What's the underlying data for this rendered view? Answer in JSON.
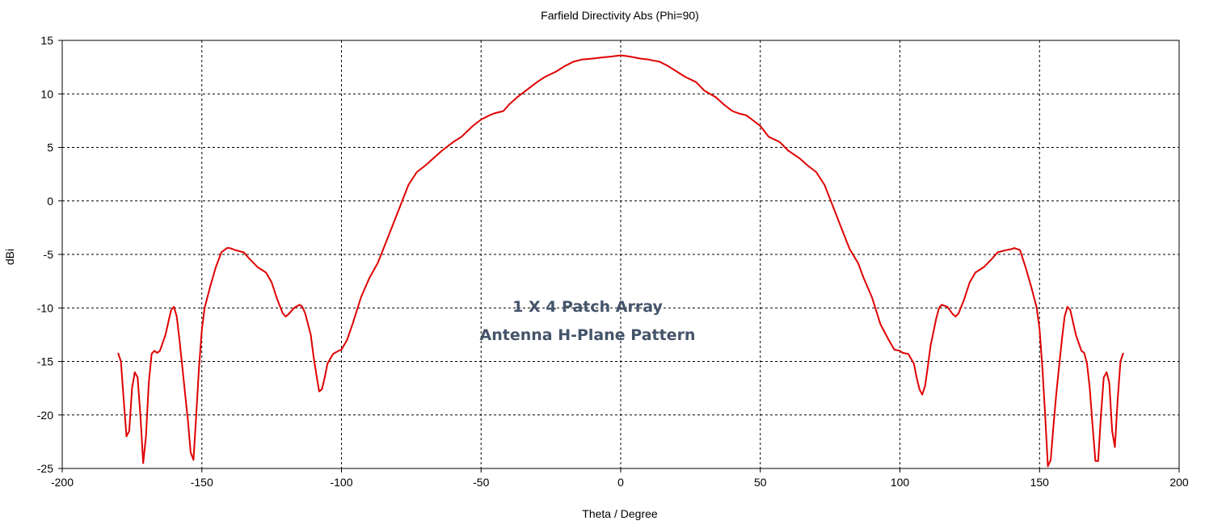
{
  "chart_data": {
    "type": "line",
    "title": "Farfield Directivity Abs (Phi=90)",
    "xlabel": "Theta / Degree",
    "ylabel": "dBi",
    "xlim": [
      -200,
      200
    ],
    "ylim": [
      -25,
      15
    ],
    "xticks": [
      -200,
      -150,
      -100,
      -50,
      0,
      50,
      100,
      150,
      200
    ],
    "yticks": [
      -25,
      -20,
      -15,
      -10,
      -5,
      0,
      5,
      10,
      15
    ],
    "grid": true,
    "annotations": [
      "1 X 4 Patch Array",
      "Antenna H-Plane Pattern"
    ],
    "series": [
      {
        "color": "#e00000",
        "x": [
          -180,
          -179,
          -178,
          -177,
          -176,
          -175,
          -174,
          -173,
          -172,
          -171,
          -170,
          -169,
          -168,
          -167,
          -166,
          -165,
          -163,
          -161,
          -160,
          -159,
          -158,
          -157,
          -156,
          -155,
          -154,
          -153,
          -152,
          -151,
          -150,
          -149,
          -147,
          -145,
          -143,
          -141,
          -140,
          -138,
          -135,
          -133,
          -130,
          -127,
          -125,
          -123,
          -121,
          -120,
          -119,
          -117,
          -115,
          -114,
          -113,
          -111,
          -110,
          -109,
          -108,
          -107,
          -106,
          -105,
          -103,
          -101,
          -100,
          -98,
          -96,
          -93,
          -90,
          -87,
          -85,
          -82,
          -79,
          -76,
          -73,
          -70,
          -67,
          -64,
          -60,
          -57,
          -53,
          -50,
          -47,
          -45,
          -42,
          -40,
          -37,
          -34,
          -30,
          -27,
          -23,
          -20,
          -17,
          -14,
          -10,
          -7,
          -3,
          0,
          3,
          7,
          10,
          14,
          17,
          20,
          23,
          27,
          30,
          34,
          37,
          40,
          42,
          45,
          47,
          50,
          53,
          57,
          60,
          64,
          67,
          70,
          73,
          76,
          79,
          82,
          85,
          87,
          90,
          93,
          96,
          98,
          100,
          101,
          103,
          105,
          106,
          107,
          108,
          109,
          110,
          111,
          113,
          114,
          115,
          117,
          119,
          120,
          121,
          123,
          125,
          127,
          130,
          133,
          135,
          138,
          140,
          141,
          143,
          145,
          147,
          149,
          150,
          151,
          152,
          153,
          154,
          155,
          156,
          157,
          158,
          159,
          160,
          161,
          163,
          165,
          166,
          167,
          168,
          169,
          170,
          171,
          172,
          173,
          174,
          175,
          176,
          177,
          178,
          179,
          180
        ],
        "values": [
          -14.2,
          -15.0,
          -18.5,
          -22.0,
          -21.5,
          -17.5,
          -16.0,
          -16.5,
          -20.0,
          -24.5,
          -22.0,
          -17.0,
          -14.3,
          -14.0,
          -14.2,
          -14.0,
          -12.5,
          -10.2,
          -9.9,
          -10.8,
          -13.0,
          -15.5,
          -18.0,
          -20.5,
          -23.5,
          -24.2,
          -20.0,
          -15.5,
          -12.0,
          -10.0,
          -8.0,
          -6.2,
          -4.8,
          -4.4,
          -4.4,
          -4.6,
          -4.8,
          -5.4,
          -6.2,
          -6.7,
          -7.6,
          -9.2,
          -10.5,
          -10.8,
          -10.6,
          -10.0,
          -9.7,
          -9.9,
          -10.5,
          -12.5,
          -14.5,
          -16.2,
          -17.8,
          -17.6,
          -16.5,
          -15.2,
          -14.3,
          -14.0,
          -13.9,
          -13.0,
          -11.5,
          -9.0,
          -7.2,
          -5.8,
          -4.5,
          -2.5,
          -0.5,
          1.5,
          2.7,
          3.3,
          4.0,
          4.7,
          5.5,
          6.0,
          7.0,
          7.6,
          8.0,
          8.2,
          8.4,
          9.0,
          9.7,
          10.3,
          11.1,
          11.6,
          12.1,
          12.6,
          13.0,
          13.2,
          13.3,
          13.4,
          13.5,
          13.6,
          13.5,
          13.3,
          13.2,
          13.0,
          12.6,
          12.1,
          11.6,
          11.1,
          10.3,
          9.7,
          9.0,
          8.4,
          8.2,
          8.0,
          7.6,
          7.0,
          6.0,
          5.5,
          4.7,
          4.0,
          3.3,
          2.7,
          1.5,
          -0.5,
          -2.5,
          -4.5,
          -5.8,
          -7.2,
          -9.0,
          -11.5,
          -13.0,
          -13.9,
          -14.0,
          -14.2,
          -14.3,
          -15.2,
          -16.5,
          -17.6,
          -18.1,
          -17.3,
          -15.5,
          -13.5,
          -11.0,
          -10.0,
          -9.7,
          -9.9,
          -10.6,
          -10.8,
          -10.5,
          -9.2,
          -7.6,
          -6.7,
          -6.2,
          -5.4,
          -4.8,
          -4.6,
          -4.5,
          -4.4,
          -4.6,
          -6.2,
          -8.0,
          -10.0,
          -12.0,
          -15.5,
          -20.0,
          -24.8,
          -24.2,
          -21.0,
          -18.0,
          -15.5,
          -13.0,
          -10.8,
          -9.9,
          -10.2,
          -12.5,
          -14.0,
          -14.2,
          -15.2,
          -17.5,
          -21.0,
          -24.3,
          -24.3,
          -20.0,
          -16.5,
          -16.0,
          -17.0,
          -21.5,
          -23.0,
          -18.5,
          -15.0,
          -14.2
        ]
      }
    ]
  }
}
